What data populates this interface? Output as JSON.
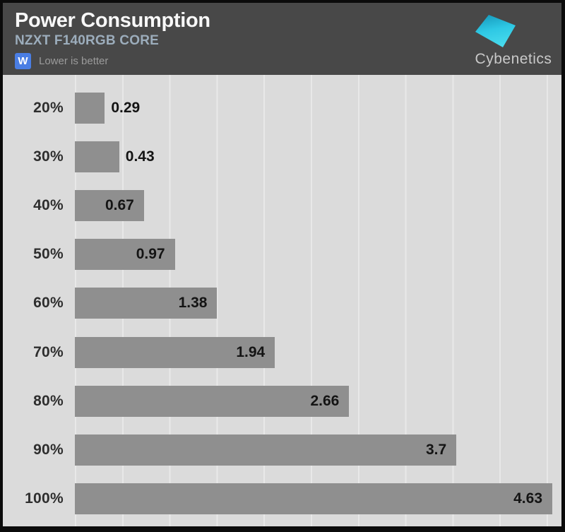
{
  "header": {
    "title": "Power Consumption",
    "subtitle": "NZXT F140RGB CORE",
    "unit_badge": "W",
    "note": "Lower is better",
    "brand": "Cybenetics"
  },
  "colors": {
    "header_bg": "#484848",
    "chart_bg": "#dbdbdb",
    "gridline": "#e8e8e8",
    "bar": "#8f8f8f",
    "badge_blue": "#4a7ee4",
    "subtitle_steel": "#9cadbc",
    "logo_teal_dark": "#189ec0",
    "logo_cyan_light": "#49dcee"
  },
  "chart_data": {
    "type": "bar",
    "orientation": "horizontal",
    "title": "Power Consumption",
    "subtitle": "NZXT F140RGB CORE",
    "unit": "W",
    "note": "Lower is better",
    "categories": [
      "20%",
      "30%",
      "40%",
      "50%",
      "60%",
      "70%",
      "80%",
      "90%",
      "100%"
    ],
    "values": [
      0.29,
      0.43,
      0.67,
      0.97,
      1.38,
      1.94,
      2.66,
      3.7,
      4.63
    ],
    "value_labels": [
      "0.29",
      "0.43",
      "0.67",
      "0.97",
      "1.38",
      "1.94",
      "2.66",
      "3.7",
      "4.63"
    ],
    "label_placement": [
      "outside",
      "outside",
      "inside",
      "inside",
      "inside",
      "inside",
      "inside",
      "inside",
      "inside"
    ],
    "axis_min": 0,
    "axis_max": 4.63,
    "grid": "vertical-only",
    "legend": "none",
    "bar_color": "#8f8f8f"
  }
}
